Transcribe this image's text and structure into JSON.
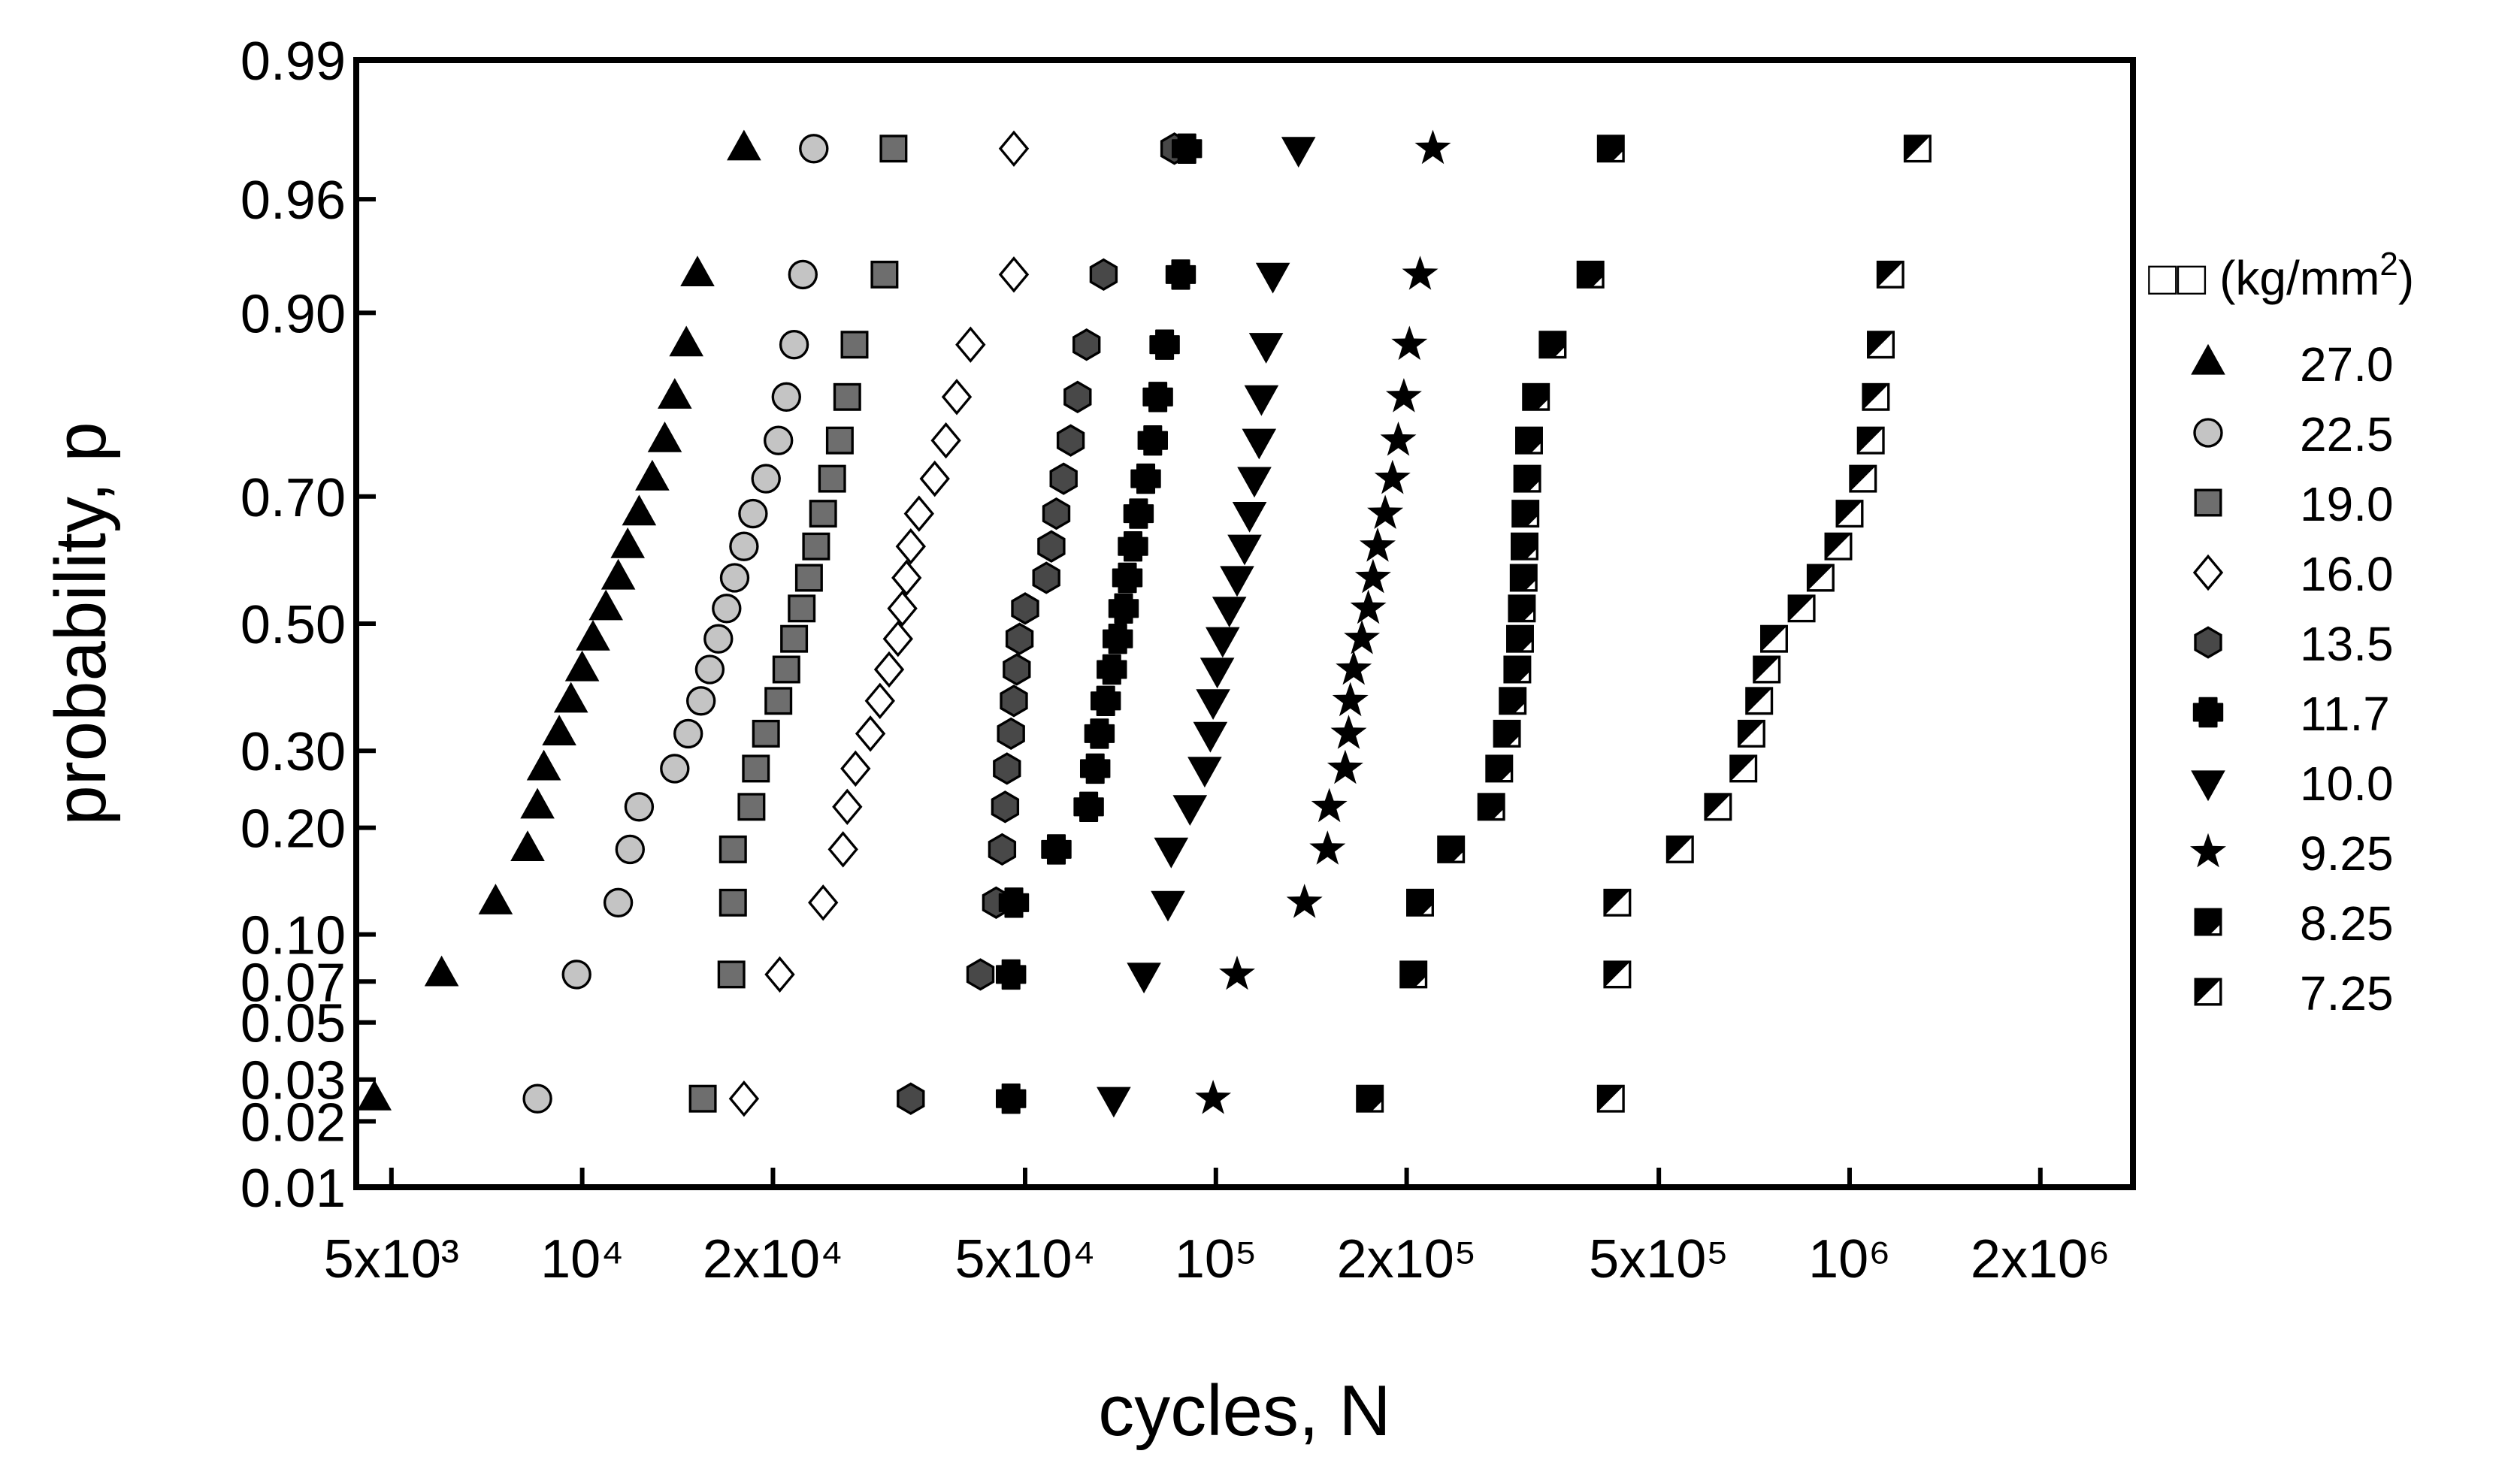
{
  "chart_data": {
    "type": "scatter",
    "xscale": "log",
    "yscale": "normal-probability",
    "xlabel": "cycles, N",
    "ylabel": "probability, p",
    "xlim": [
      4400,
      2800000
    ],
    "ylim": [
      0.01,
      0.99
    ],
    "x_ticks": [
      {
        "value": 5000,
        "label": "5x10³"
      },
      {
        "value": 10000,
        "label": "10⁴"
      },
      {
        "value": 20000,
        "label": "2x10⁴"
      },
      {
        "value": 50000,
        "label": "5x10⁴"
      },
      {
        "value": 100000,
        "label": "10⁵"
      },
      {
        "value": 200000,
        "label": "2x10⁵"
      },
      {
        "value": 500000,
        "label": "5x10⁵"
      },
      {
        "value": 1000000,
        "label": "10⁶"
      },
      {
        "value": 2000000,
        "label": "2x10⁶"
      }
    ],
    "y_ticks": [
      {
        "value": 0.01,
        "label": "0.01"
      },
      {
        "value": 0.02,
        "label": "0.02"
      },
      {
        "value": 0.03,
        "label": "0.03"
      },
      {
        "value": 0.05,
        "label": "0.05"
      },
      {
        "value": 0.07,
        "label": "0.07"
      },
      {
        "value": 0.1,
        "label": "0.10"
      },
      {
        "value": 0.2,
        "label": "0.20"
      },
      {
        "value": 0.3,
        "label": "0.30"
      },
      {
        "value": 0.5,
        "label": "0.50"
      },
      {
        "value": 0.7,
        "label": "0.70"
      },
      {
        "value": 0.9,
        "label": "0.90"
      },
      {
        "value": 0.96,
        "label": "0.96"
      },
      {
        "value": 0.99,
        "label": "0.99"
      }
    ],
    "p_levels": [
      0.025,
      0.074,
      0.125,
      0.176,
      0.225,
      0.275,
      0.325,
      0.375,
      0.425,
      0.475,
      0.525,
      0.575,
      0.625,
      0.675,
      0.725,
      0.775,
      0.825,
      0.875,
      0.925,
      0.975
    ],
    "grid": false,
    "legend": {
      "position": "right",
      "title_prefix": "□□",
      "title_unit": "(kg/mm",
      "title_sup": "2",
      "title_suffix": ")"
    },
    "series": [
      {
        "name": "27.0",
        "marker": "triangle-up",
        "fill": "#000000",
        "x": [
          4700,
          6000,
          7300,
          8200,
          8500,
          8700,
          9200,
          9600,
          10000,
          10400,
          10900,
          11400,
          11800,
          12300,
          12900,
          13500,
          14000,
          14600,
          15200,
          18000
        ]
      },
      {
        "name": "22.5",
        "marker": "circle",
        "fill": "#c4c4c4",
        "x": [
          8500,
          9800,
          11400,
          11900,
          12300,
          14000,
          14700,
          15400,
          15900,
          16400,
          16900,
          17400,
          18000,
          18600,
          19500,
          20400,
          21000,
          21600,
          22300,
          23200
        ]
      },
      {
        "name": "19.0",
        "marker": "square",
        "fill": "#6e6e6e",
        "x": [
          15500,
          17200,
          17300,
          17300,
          18500,
          18800,
          19500,
          20400,
          21000,
          21600,
          22200,
          22800,
          23400,
          24000,
          24800,
          25500,
          26200,
          26900,
          30000,
          31000
        ]
      },
      {
        "name": "16.0",
        "marker": "diamond",
        "fill": "#ffffff",
        "x": [
          18000,
          20500,
          24000,
          25800,
          26200,
          27000,
          28500,
          29500,
          30500,
          31500,
          32000,
          32500,
          33000,
          34000,
          36000,
          37500,
          39000,
          41000,
          48000,
          48000
        ]
      },
      {
        "name": "13.5",
        "marker": "hexagon",
        "fill": "#484848",
        "x": [
          33000,
          42500,
          45000,
          46000,
          46500,
          46800,
          47500,
          48000,
          48500,
          49000,
          50000,
          54000,
          55000,
          56000,
          57500,
          59000,
          60500,
          62500,
          66500,
          86000
        ]
      },
      {
        "name": "11.7",
        "marker": "plus-circle",
        "fill": "#000000",
        "x": [
          47500,
          47500,
          48000,
          56000,
          63000,
          64500,
          65500,
          67000,
          68500,
          70000,
          71500,
          72500,
          74000,
          75500,
          77500,
          79500,
          81000,
          83000,
          88000,
          90000
        ]
      },
      {
        "name": "10.0",
        "marker": "triangle-down",
        "fill": "#000000",
        "x": [
          69000,
          77000,
          84000,
          85000,
          91000,
          96000,
          98000,
          99000,
          100500,
          102500,
          105000,
          108000,
          111000,
          113000,
          115000,
          117000,
          118000,
          120000,
          123000,
          135000
        ]
      },
      {
        "name": "9.25",
        "marker": "star",
        "fill": "#000000",
        "x": [
          99000,
          108000,
          138000,
          150000,
          151000,
          160000,
          162000,
          163000,
          165000,
          170000,
          174000,
          177000,
          180000,
          185000,
          190000,
          194000,
          198000,
          202000,
          210000,
          220000
        ]
      },
      {
        "name": "8.25",
        "marker": "square-half",
        "fill": "#000000",
        "x": [
          175000,
          205000,
          210000,
          235000,
          272000,
          280000,
          288000,
          294000,
          299000,
          302000,
          304000,
          306000,
          307000,
          308000,
          310000,
          312000,
          320000,
          340000,
          390000,
          420000
        ]
      },
      {
        "name": "7.25",
        "marker": "square-half-open",
        "fill": "#ffffff",
        "x": [
          420000,
          430000,
          430000,
          540000,
          620000,
          680000,
          700000,
          720000,
          740000,
          760000,
          840000,
          900000,
          960000,
          1000000,
          1050000,
          1080000,
          1100000,
          1120000,
          1160000,
          1280000
        ]
      }
    ]
  }
}
